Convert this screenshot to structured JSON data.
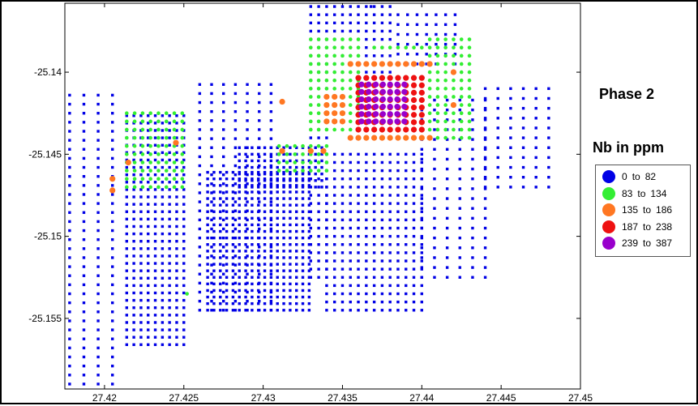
{
  "chart_data": {
    "type": "scatter",
    "title": "Phase 2",
    "subtitle": "Nb in ppm",
    "xlabel": "",
    "ylabel": "",
    "xlim": [
      27.4175,
      27.45
    ],
    "ylim": [
      -25.1593,
      -25.1358
    ],
    "xticks": [
      {
        "value": 27.42,
        "label": "27.42"
      },
      {
        "value": 27.425,
        "label": "27.425"
      },
      {
        "value": 27.43,
        "label": "27.43"
      },
      {
        "value": 27.435,
        "label": "27.435"
      },
      {
        "value": 27.44,
        "label": "27.44"
      },
      {
        "value": 27.445,
        "label": "27.445"
      },
      {
        "value": 27.45,
        "label": "27.45"
      }
    ],
    "yticks": [
      {
        "value": -25.14,
        "label": "-25.14"
      },
      {
        "value": -25.145,
        "label": "-25.145"
      },
      {
        "value": -25.15,
        "label": "-25.15"
      },
      {
        "value": -25.155,
        "label": "-25.155"
      }
    ],
    "grid": false,
    "legend_position": "right",
    "classes": [
      {
        "lo": "0",
        "to": "to",
        "hi": "82",
        "color": "#0000e6"
      },
      {
        "lo": "83",
        "to": "to",
        "hi": "134",
        "color": "#33ee33"
      },
      {
        "lo": "135",
        "to": "to",
        "hi": "186",
        "color": "#ff7722"
      },
      {
        "lo": "187",
        "to": "to",
        "hi": "238",
        "color": "#ee1111"
      },
      {
        "lo": "239",
        "to": "to",
        "hi": "387",
        "color": "#9900cc"
      }
    ],
    "grids": [
      {
        "class": 0,
        "x": [
          27.4178,
          27.4205
        ],
        "dx": 0.0009,
        "y": [
          -25.159,
          -25.141
        ],
        "dy": 0.00055
      },
      {
        "class": 0,
        "x": [
          27.4214,
          27.4253
        ],
        "dx": 0.00045,
        "y": [
          -25.1566,
          -25.1425
        ],
        "dy": 0.00045
      },
      {
        "class": 0,
        "x": [
          27.426,
          27.431
        ],
        "dx": 0.00075,
        "y": [
          -25.1545,
          -25.1405
        ],
        "dy": 0.00055
      },
      {
        "class": 0,
        "x": [
          27.4265,
          27.433
        ],
        "dx": 0.0004,
        "y": [
          -25.1545,
          -25.146
        ],
        "dy": 0.0004
      },
      {
        "class": 0,
        "x": [
          27.4285,
          27.434
        ],
        "dx": 0.0004,
        "y": [
          -25.147,
          -25.1445
        ],
        "dy": 0.0004
      },
      {
        "class": 0,
        "x": [
          27.433,
          27.434
        ],
        "dx": 0.0005,
        "y": [
          -25.1525,
          -25.138
        ],
        "dy": 0.0005
      },
      {
        "class": 0,
        "x": [
          27.434,
          27.44
        ],
        "dx": 0.0005,
        "y": [
          -25.1545,
          -25.145
        ],
        "dy": 0.0005
      },
      {
        "class": 0,
        "x": [
          27.433,
          27.438
        ],
        "dx": 0.0005,
        "y": [
          -25.14,
          -25.136
        ],
        "dy": 0.0005
      },
      {
        "class": 0,
        "x": [
          27.4385,
          27.4425
        ],
        "dx": 0.0006,
        "y": [
          -25.1395,
          -25.1365
        ],
        "dy": 0.0006
      },
      {
        "class": 0,
        "x": [
          27.44,
          27.444
        ],
        "dx": 0.0008,
        "y": [
          -25.1525,
          -25.1415
        ],
        "dy": 0.0006
      },
      {
        "class": 0,
        "x": [
          27.444,
          27.4482
        ],
        "dx": 0.0008,
        "y": [
          -25.147,
          -25.141
        ],
        "dy": 0.0006
      },
      {
        "class": 1,
        "x": [
          27.4214,
          27.4253
        ],
        "dx": 0.0005,
        "y": [
          -25.147,
          -25.1425
        ],
        "dy": 0.0005
      },
      {
        "class": 1,
        "x": [
          27.431,
          27.434
        ],
        "dx": 0.0005,
        "y": [
          -25.146,
          -25.1445
        ],
        "dy": 0.0005
      },
      {
        "class": 1,
        "x": [
          27.433,
          27.436
        ],
        "dx": 0.0005,
        "y": [
          -25.1435,
          -25.138
        ],
        "dy": 0.0005
      },
      {
        "class": 1,
        "x": [
          27.4405,
          27.443
        ],
        "dx": 0.0005,
        "y": [
          -25.144,
          -25.138
        ],
        "dy": 0.0005
      },
      {
        "class": 1,
        "x": [
          27.437,
          27.44
        ],
        "dx": 0.0005,
        "y": [
          -25.1385,
          -25.1385
        ],
        "dy": 0.0005
      },
      {
        "class": 2,
        "x": [
          27.4355,
          27.4405
        ],
        "dx": 0.0005,
        "y": [
          -25.144,
          -25.144
        ],
        "dy": 0.0005
      },
      {
        "class": 2,
        "x": [
          27.4355,
          27.4405
        ],
        "dx": 0.0005,
        "y": [
          -25.1395,
          -25.1395
        ],
        "dy": 0.0005
      },
      {
        "class": 2,
        "x": [
          27.434,
          27.435
        ],
        "dx": 0.0005,
        "y": [
          -25.143,
          -25.1415
        ],
        "dy": 0.0005
      },
      {
        "class": 3,
        "x": [
          27.436,
          27.44
        ],
        "dx": 0.0005,
        "y": [
          -25.1435,
          -25.14
        ],
        "dy": 0.00045
      },
      {
        "class": 4,
        "x": [
          27.4362,
          27.439
        ],
        "dx": 0.00045,
        "y": [
          -25.143,
          -25.1405
        ],
        "dy": 0.00045
      }
    ],
    "points": [
      {
        "x": 27.4205,
        "y": -25.1465,
        "class": 2
      },
      {
        "x": 27.4205,
        "y": -25.1472,
        "class": 2
      },
      {
        "x": 27.4215,
        "y": -25.1455,
        "class": 2
      },
      {
        "x": 27.4245,
        "y": -25.1443,
        "class": 2
      },
      {
        "x": 27.4312,
        "y": -25.1418,
        "class": 2
      },
      {
        "x": 27.4312,
        "y": -25.1448,
        "class": 2
      },
      {
        "x": 27.433,
        "y": -25.1448,
        "class": 2
      },
      {
        "x": 27.4338,
        "y": -25.1448,
        "class": 2
      },
      {
        "x": 27.4368,
        "y": -25.136,
        "class": 0
      },
      {
        "x": 27.4252,
        "y": -25.1535,
        "class": 1
      },
      {
        "x": 27.442,
        "y": -25.14,
        "class": 2
      },
      {
        "x": 27.442,
        "y": -25.142,
        "class": 2
      }
    ]
  }
}
